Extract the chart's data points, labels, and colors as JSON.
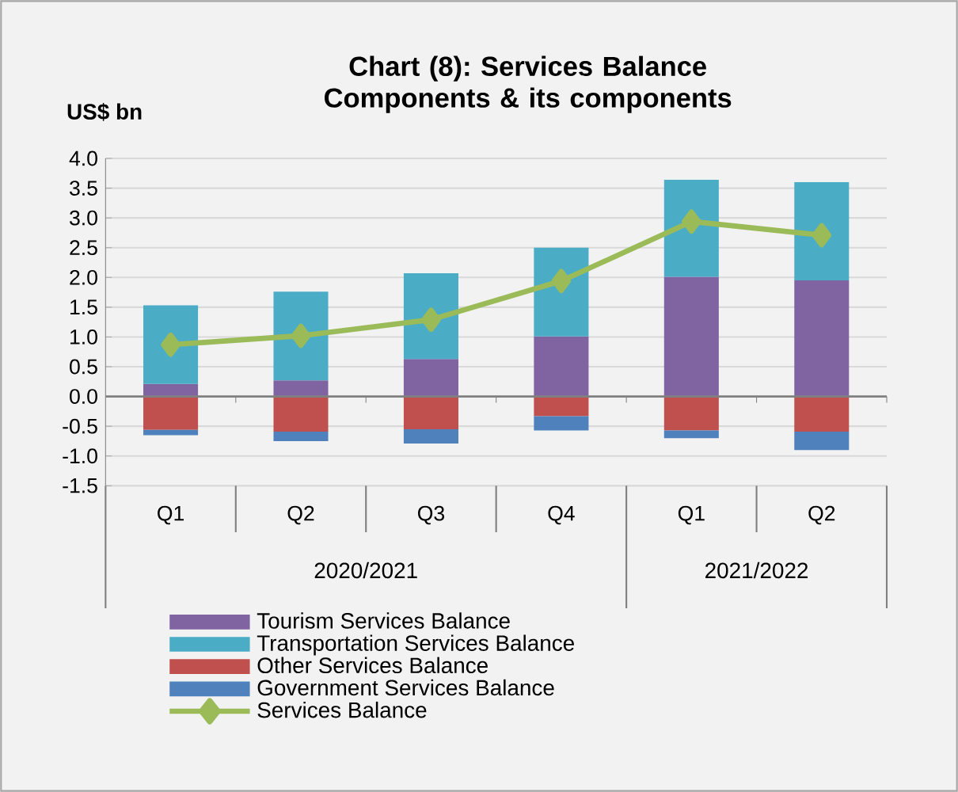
{
  "chart_data": {
    "type": "bar",
    "title": "Chart (8): Services Balance Components & its components",
    "ylabel": "US$ bn",
    "categories": [
      "Q1",
      "Q2",
      "Q3",
      "Q4",
      "Q1",
      "Q2"
    ],
    "annotations": [
      "2020/2021",
      "2021/2022"
    ],
    "stacked": true,
    "series": [
      {
        "name": "Tourism Services Balance",
        "color": "#8064a2",
        "values": [
          0.21,
          0.27,
          0.63,
          1.01,
          2.01,
          1.95
        ]
      },
      {
        "name": "Transportation Services Balance",
        "color": "#4bacc6",
        "values": [
          1.32,
          1.49,
          1.44,
          1.49,
          1.63,
          1.65
        ]
      },
      {
        "name": "Other Services  Balance",
        "color": "#c0504d",
        "values": [
          -0.56,
          -0.59,
          -0.55,
          -0.33,
          -0.57,
          -0.59
        ]
      },
      {
        "name": "Government Services  Balance",
        "color": "#4f81bd",
        "values": [
          -0.09,
          -0.16,
          -0.24,
          -0.24,
          -0.13,
          -0.31
        ]
      },
      {
        "name": "Services Balance",
        "type": "line",
        "color": "#9bbb59",
        "values": [
          0.87,
          1.02,
          1.29,
          1.94,
          2.94,
          2.71
        ]
      }
    ],
    "ylim": [
      -1.5,
      4.0
    ],
    "yticks": [
      {
        "value": -1.5,
        "label": "-1.5"
      },
      {
        "value": -1.0,
        "label": "-1.0"
      },
      {
        "value": -0.5,
        "label": "-0.5"
      },
      {
        "value": 0,
        "label": "0.0"
      },
      {
        "value": 0.5,
        "label": "0.5"
      },
      {
        "value": 1.0,
        "label": "1.0"
      },
      {
        "value": 1.5,
        "label": "1.5"
      },
      {
        "value": 2.0,
        "label": "2.0"
      },
      {
        "value": 2.5,
        "label": "2.5"
      },
      {
        "value": 3.0,
        "label": "3.0"
      },
      {
        "value": 3.5,
        "label": "3.5"
      },
      {
        "value": 4.0,
        "label": "4.0"
      }
    ],
    "grid": "y",
    "legend": "bottom",
    "marker": "diamond"
  }
}
